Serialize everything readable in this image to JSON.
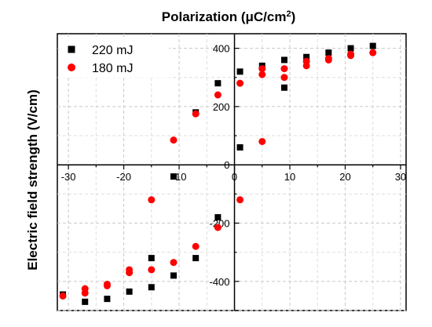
{
  "chart_data": {
    "type": "scatter",
    "title": "",
    "xlabel_html": "Polarization (μC/cm²)",
    "xlabel": "Polarization (μC/cm",
    "xlabel_sup": "2",
    "xlabel_tail": ")",
    "ylabel": "Electric field strength (V/cm)",
    "xlim": [
      -32,
      31
    ],
    "ylim": [
      -500,
      450
    ],
    "x_ticks": [
      -30,
      -20,
      -10,
      0,
      10,
      20,
      30
    ],
    "y_ticks": [
      -400,
      -200,
      0,
      200,
      400
    ],
    "grid": true,
    "legend_position": "top-left",
    "series": [
      {
        "name": "220 mJ",
        "marker": "square",
        "color": "#000000",
        "points": [
          {
            "x": -31,
            "y": -445
          },
          {
            "x": -27,
            "y": -470
          },
          {
            "x": -23,
            "y": -460
          },
          {
            "x": -19,
            "y": -435
          },
          {
            "x": -15,
            "y": -420
          },
          {
            "x": -15,
            "y": -320
          },
          {
            "x": -11,
            "y": -380
          },
          {
            "x": -11,
            "y": -40
          },
          {
            "x": -7,
            "y": -320
          },
          {
            "x": -7,
            "y": 180
          },
          {
            "x": -3,
            "y": -180
          },
          {
            "x": -3,
            "y": 280
          },
          {
            "x": 1,
            "y": 60
          },
          {
            "x": 1,
            "y": 320
          },
          {
            "x": 5,
            "y": 340
          },
          {
            "x": 9,
            "y": 265
          },
          {
            "x": 9,
            "y": 360
          },
          {
            "x": 13,
            "y": 370
          },
          {
            "x": 17,
            "y": 385
          },
          {
            "x": 21,
            "y": 400
          },
          {
            "x": 25,
            "y": 408
          }
        ]
      },
      {
        "name": "180 mJ",
        "marker": "circle",
        "color": "#ff0000",
        "points": [
          {
            "x": -31,
            "y": -450
          },
          {
            "x": -27,
            "y": -440
          },
          {
            "x": -27,
            "y": -425
          },
          {
            "x": -23,
            "y": -415
          },
          {
            "x": -23,
            "y": -410
          },
          {
            "x": -19,
            "y": -370
          },
          {
            "x": -19,
            "y": -360
          },
          {
            "x": -15,
            "y": -360
          },
          {
            "x": -15,
            "y": -120
          },
          {
            "x": -11,
            "y": -335
          },
          {
            "x": -11,
            "y": 85
          },
          {
            "x": -7,
            "y": -280
          },
          {
            "x": -7,
            "y": 175
          },
          {
            "x": -3,
            "y": -215
          },
          {
            "x": -3,
            "y": 240
          },
          {
            "x": 1,
            "y": -120
          },
          {
            "x": 1,
            "y": 280
          },
          {
            "x": 5,
            "y": 80
          },
          {
            "x": 5,
            "y": 310
          },
          {
            "x": 5,
            "y": 330
          },
          {
            "x": 9,
            "y": 300
          },
          {
            "x": 9,
            "y": 330
          },
          {
            "x": 13,
            "y": 340
          },
          {
            "x": 13,
            "y": 355
          },
          {
            "x": 17,
            "y": 360
          },
          {
            "x": 17,
            "y": 365
          },
          {
            "x": 21,
            "y": 375
          },
          {
            "x": 21,
            "y": 380
          },
          {
            "x": 25,
            "y": 385
          }
        ]
      }
    ]
  }
}
